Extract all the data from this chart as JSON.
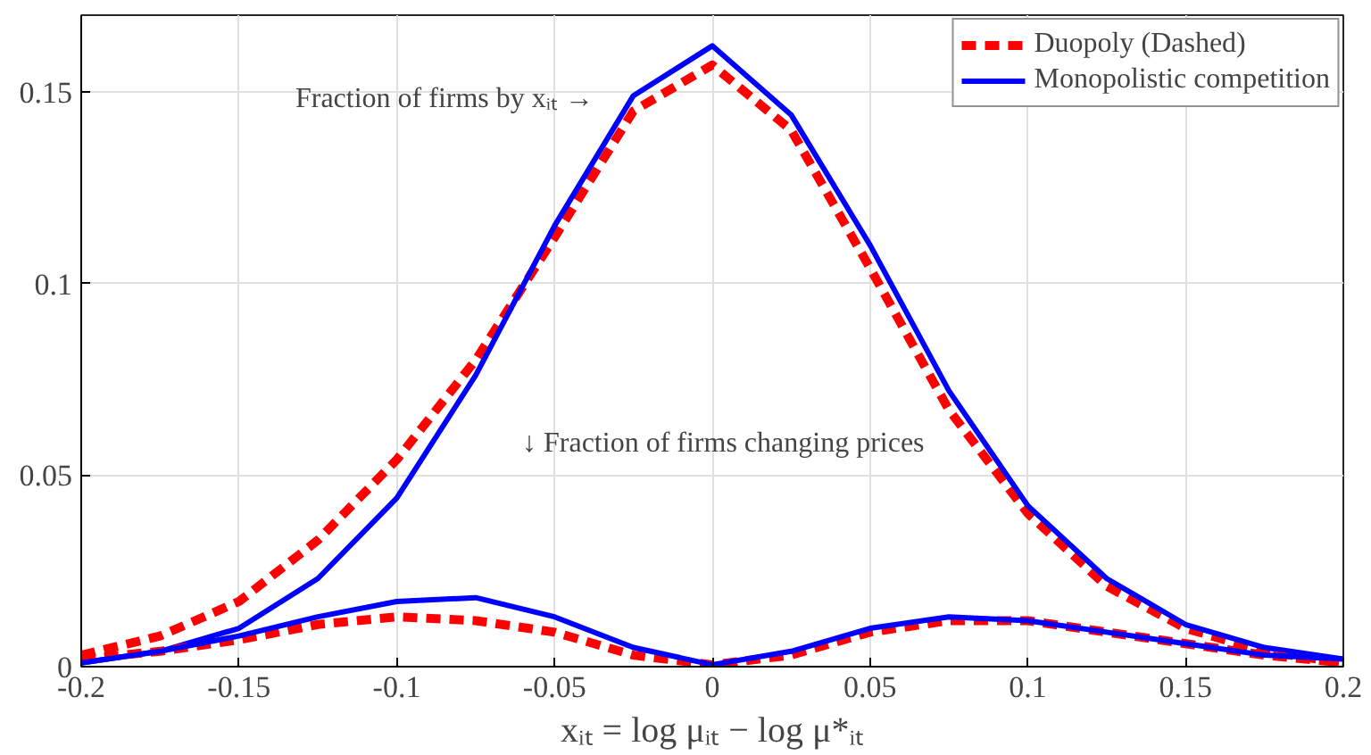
{
  "chart_data": {
    "type": "line",
    "xlabel": "xᵢₜ = log μᵢₜ − log μ*ᵢₜ",
    "x": [
      -0.2,
      -0.175,
      -0.15,
      -0.125,
      -0.1,
      -0.075,
      -0.05,
      -0.025,
      0,
      0.025,
      0.05,
      0.075,
      0.1,
      0.125,
      0.15,
      0.175,
      0.2
    ],
    "series": [
      {
        "name": "Duopoly (Dashed)",
        "color": "#ff0000",
        "line_style": "dashed",
        "values": [
          0.003,
          0.008,
          0.017,
          0.033,
          0.054,
          0.08,
          0.112,
          0.145,
          0.157,
          0.14,
          0.104,
          0.067,
          0.04,
          0.021,
          0.01,
          0.004,
          0.001
        ]
      },
      {
        "name": "Monopolistic competition",
        "color": "#0000ff",
        "line_style": "solid",
        "values": [
          0.001,
          0.004,
          0.01,
          0.023,
          0.044,
          0.076,
          0.115,
          0.149,
          0.162,
          0.144,
          0.11,
          0.072,
          0.042,
          0.023,
          0.011,
          0.005,
          0.002
        ]
      },
      {
        "color": "#ff0000",
        "line_style": "dashed",
        "values": [
          0.002,
          0.004,
          0.007,
          0.011,
          0.013,
          0.012,
          0.009,
          0.003,
          0.0005,
          0.003,
          0.009,
          0.012,
          0.012,
          0.009,
          0.006,
          0.003,
          0.001
        ]
      },
      {
        "color": "#0000ff",
        "line_style": "solid",
        "values": [
          0.001,
          0.004,
          0.008,
          0.013,
          0.017,
          0.018,
          0.013,
          0.005,
          0.0005,
          0.004,
          0.01,
          0.013,
          0.012,
          0.009,
          0.006,
          0.003,
          0.002
        ]
      }
    ],
    "annotations": [
      "Fraction of firms by xᵢₜ →",
      "↓ Fraction of firms changing prices"
    ],
    "xlim": [
      -0.2,
      0.2
    ],
    "xticks": [
      -0.2,
      -0.15,
      -0.1,
      -0.05,
      0,
      0.05,
      0.1,
      0.15,
      0.2
    ],
    "ylim": [
      0,
      0.17
    ],
    "yticks": [
      0,
      0.05,
      0.1,
      0.15
    ],
    "grid": true,
    "legend": "top right"
  }
}
